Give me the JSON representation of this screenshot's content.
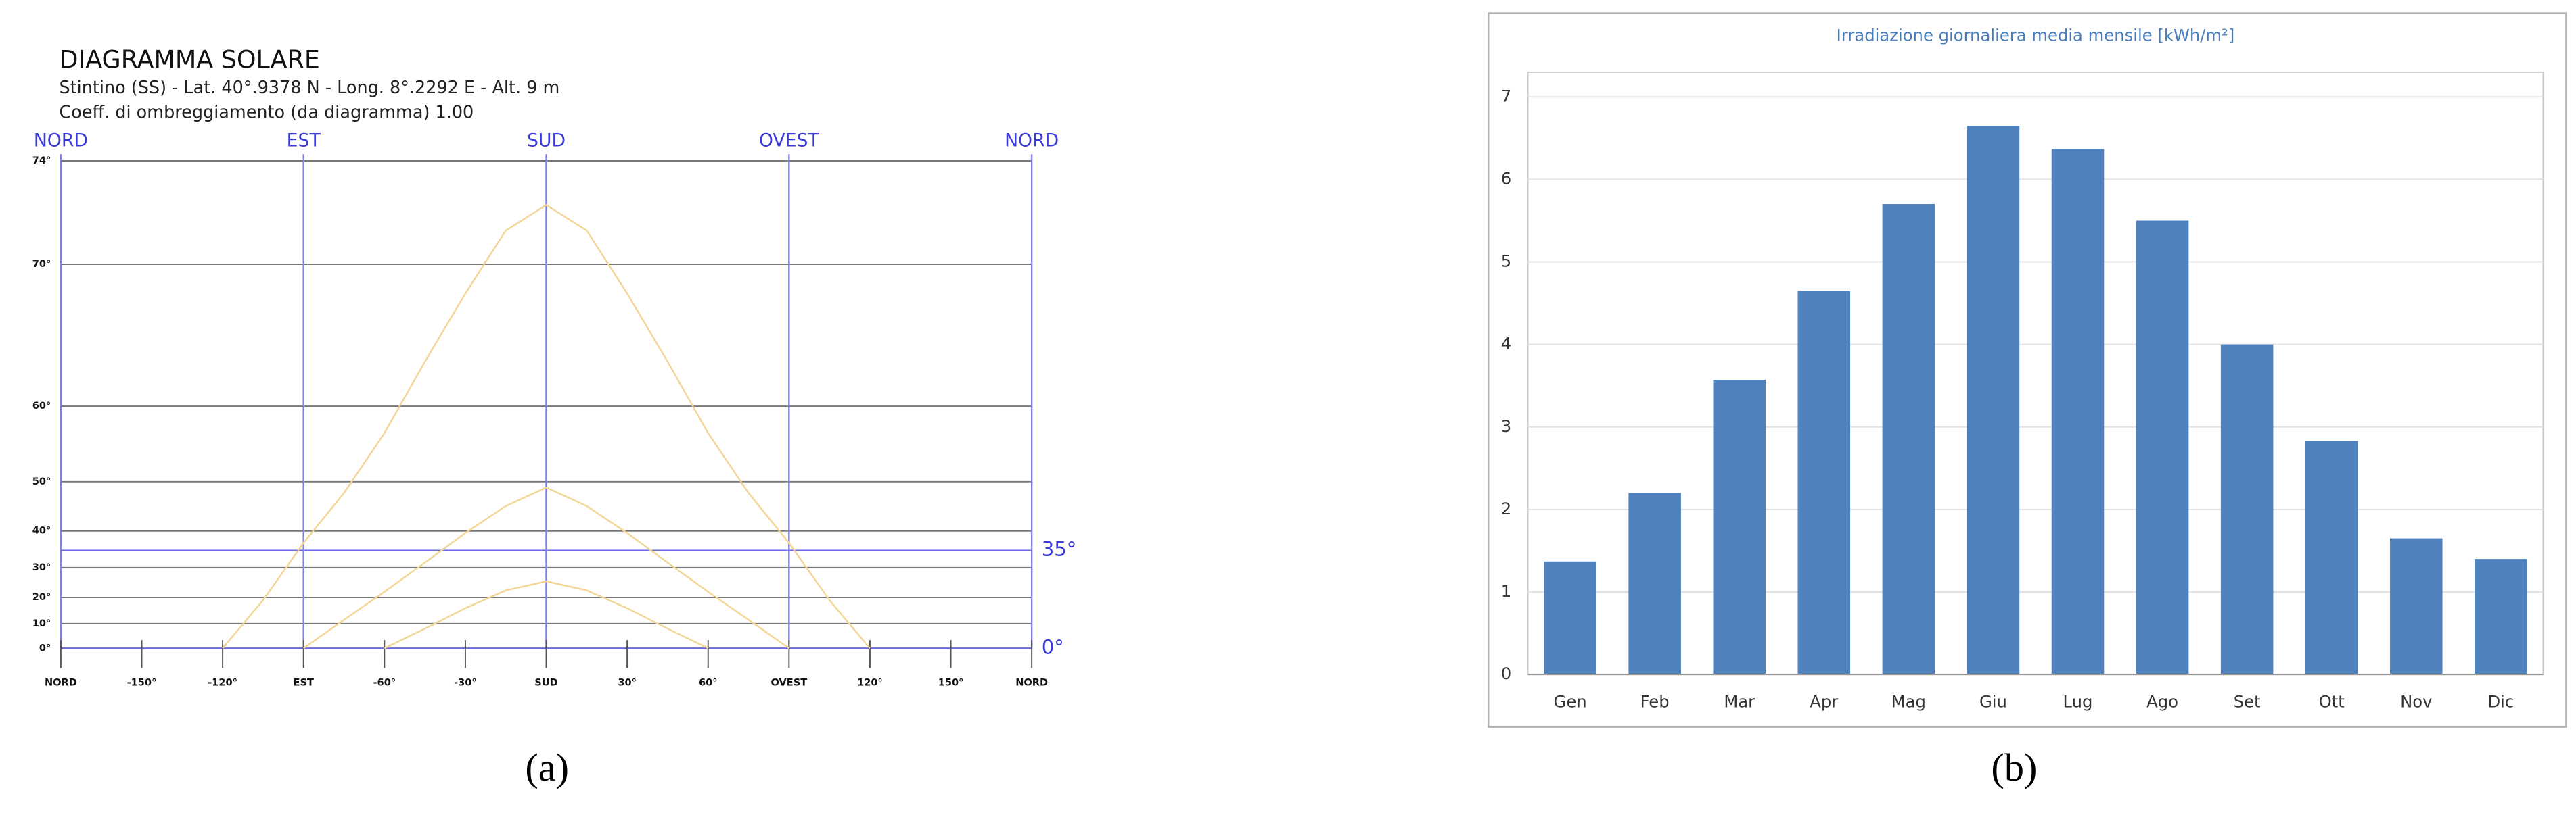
{
  "chart_data": [
    {
      "type": "line",
      "title": "DIAGRAMMA SOLARE",
      "subtitle": [
        "Stintino (SS) - Lat. 40°.9378 N - Long. 8°.2292 E - Alt. 9 m",
        "Coeff. di ombreggiamento (da diagramma) 1.00"
      ],
      "xlim": [
        -180,
        180
      ],
      "xticks": [
        {
          "value": -180,
          "label": "NORD"
        },
        {
          "value": -150,
          "label": "-150°"
        },
        {
          "value": -120,
          "label": "-120°"
        },
        {
          "value": -90,
          "label": "EST"
        },
        {
          "value": -60,
          "label": "-60°"
        },
        {
          "value": -30,
          "label": "-30°"
        },
        {
          "value": 0,
          "label": "SUD"
        },
        {
          "value": 30,
          "label": "30°"
        },
        {
          "value": 60,
          "label": "60°"
        },
        {
          "value": 90,
          "label": "OVEST"
        },
        {
          "value": 120,
          "label": "120°"
        },
        {
          "value": 150,
          "label": "150°"
        },
        {
          "value": 180,
          "label": "NORD"
        }
      ],
      "top_labels": [
        {
          "value": -180,
          "label": "NORD"
        },
        {
          "value": -90,
          "label": "EST"
        },
        {
          "value": 0,
          "label": "SUD"
        },
        {
          "value": 90,
          "label": "OVEST"
        },
        {
          "value": 180,
          "label": "NORD"
        }
      ],
      "ylim": [
        0,
        74
      ],
      "yscale": "tan",
      "yticks": [
        {
          "value": 0,
          "label": "0°"
        },
        {
          "value": 10,
          "label": "10°"
        },
        {
          "value": 20,
          "label": "20°"
        },
        {
          "value": 30,
          "label": "30°"
        },
        {
          "value": 40,
          "label": "40°"
        },
        {
          "value": 50,
          "label": "50°"
        },
        {
          "value": 60,
          "label": "60°"
        },
        {
          "value": 70,
          "label": "70°"
        },
        {
          "value": 74,
          "label": "74°"
        }
      ],
      "reference_lines": [
        {
          "value": 35,
          "label": "35°"
        },
        {
          "value": 0,
          "label": "0°"
        }
      ],
      "grid": true,
      "series": [
        {
          "color": "#f3d595",
          "x": [
            -120,
            -105,
            -90,
            -75,
            -60,
            -45,
            -30,
            -15,
            0,
            15,
            30,
            45,
            60,
            75,
            90,
            105,
            120
          ],
          "values": [
            0,
            19,
            37,
            48,
            57,
            64,
            68.5,
            71.5,
            72.5,
            71.5,
            68.5,
            64,
            57,
            48,
            37,
            19,
            0
          ]
        },
        {
          "color": "#f3d595",
          "x": [
            -90,
            -75,
            -60,
            -45,
            -30,
            -15,
            0,
            15,
            30,
            45,
            60,
            75,
            90
          ],
          "values": [
            0,
            11.5,
            22,
            31.5,
            39.5,
            45.5,
            49,
            45.5,
            39.5,
            31.5,
            22,
            11.5,
            0
          ]
        },
        {
          "color": "#f3d595",
          "x": [
            -60,
            -45,
            -30,
            -15,
            0,
            15,
            30,
            45,
            60
          ],
          "values": [
            0,
            8,
            16,
            22.5,
            25.6,
            22.5,
            16,
            8,
            0
          ]
        }
      ]
    },
    {
      "type": "bar",
      "title": "Irradiazione giornaliera media mensile [kWh/m²]",
      "categories": [
        "Gen",
        "Feb",
        "Mar",
        "Apr",
        "Mag",
        "Giu",
        "Lug",
        "Ago",
        "Set",
        "Ott",
        "Nov",
        "Dic"
      ],
      "values": [
        1.37,
        2.2,
        3.57,
        4.65,
        5.7,
        6.65,
        6.37,
        5.5,
        4.0,
        2.83,
        1.65,
        1.4
      ],
      "color": "#4f81bd",
      "ylim": [
        0,
        7
      ],
      "yticks": [
        0,
        1,
        2,
        3,
        4,
        5,
        6,
        7
      ],
      "grid": true
    }
  ],
  "captions": [
    "(a)",
    "(b)"
  ]
}
